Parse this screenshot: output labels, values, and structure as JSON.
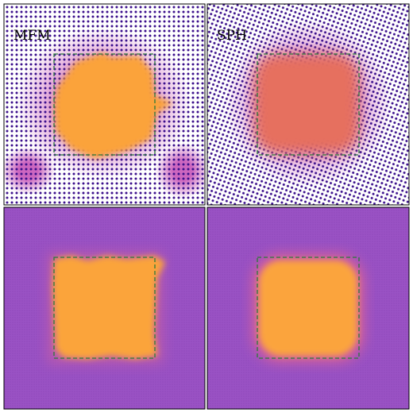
{
  "panels": [
    {
      "label": "MFM"
    },
    {
      "label": "SPH"
    }
  ]
}
